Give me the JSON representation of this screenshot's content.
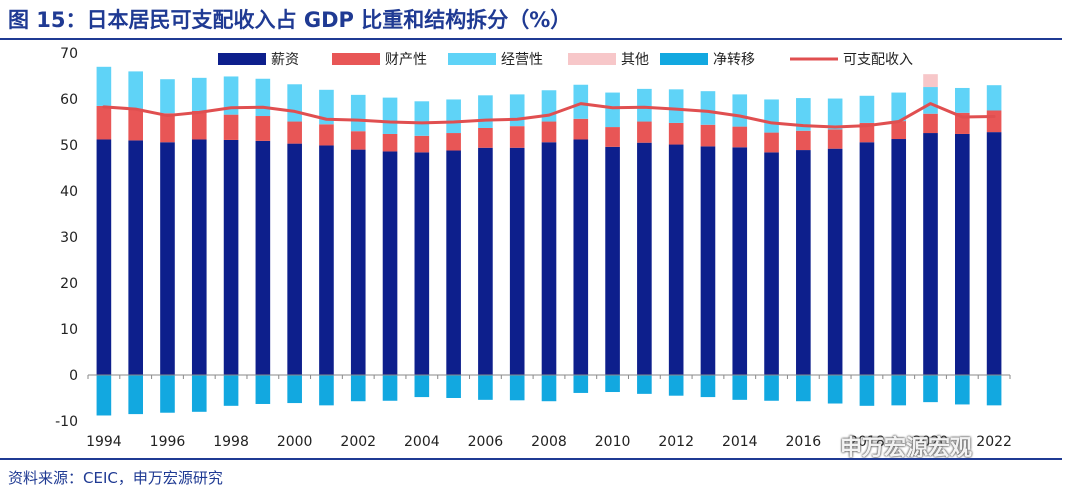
{
  "title": "图 15：日本居民可支配收入占 GDP 比重和结构拆分（%）",
  "source": "资料来源：CEIC，申万宏源研究",
  "watermark": "申万宏源宏观",
  "colors": {
    "wages": "#0d1f8c",
    "property": "#e85656",
    "business": "#5fd3f7",
    "other": "#f7c7c9",
    "transfer": "#12a8e0",
    "disposable": "#e04f50",
    "header": "#1f3a93"
  },
  "chart_data": {
    "type": "bar",
    "stacked": true,
    "x": [
      1994,
      1995,
      1996,
      1997,
      1998,
      1999,
      2000,
      2001,
      2002,
      2003,
      2004,
      2005,
      2006,
      2007,
      2008,
      2009,
      2010,
      2011,
      2012,
      2013,
      2014,
      2015,
      2016,
      2017,
      2018,
      2019,
      2020,
      2021,
      2022
    ],
    "x_tick_labels": [
      "1994",
      "1996",
      "1998",
      "2000",
      "2002",
      "2004",
      "2006",
      "2008",
      "2010",
      "2012",
      "2014",
      "2016",
      "2018",
      "2020",
      "2022"
    ],
    "ylim": [
      -10,
      70
    ],
    "y_ticks": [
      -10,
      0,
      10,
      20,
      30,
      40,
      50,
      60,
      70
    ],
    "grid": false,
    "legend": "top",
    "series": [
      {
        "name": "薪资",
        "type": "bar",
        "values": [
          51.2,
          51.0,
          50.6,
          51.2,
          51.1,
          50.9,
          50.3,
          49.9,
          49.0,
          48.6,
          48.4,
          48.8,
          49.4,
          49.4,
          50.6,
          51.2,
          49.6,
          50.5,
          50.1,
          49.7,
          49.5,
          48.4,
          48.9,
          49.2,
          50.6,
          51.3,
          52.6,
          52.4,
          52.8
        ]
      },
      {
        "name": "财产性",
        "type": "bar",
        "values": [
          7.3,
          6.9,
          6.3,
          6.2,
          5.5,
          5.4,
          4.8,
          4.6,
          4.0,
          3.8,
          3.6,
          3.8,
          4.3,
          4.7,
          4.5,
          4.5,
          4.3,
          4.6,
          4.7,
          4.7,
          4.5,
          4.3,
          4.2,
          4.2,
          4.2,
          3.9,
          4.2,
          4.6,
          4.7
        ]
      },
      {
        "name": "经营性",
        "type": "bar",
        "values": [
          8.5,
          8.1,
          7.4,
          7.2,
          8.3,
          8.1,
          8.1,
          7.5,
          7.9,
          7.9,
          7.5,
          7.3,
          7.1,
          6.9,
          6.8,
          7.4,
          7.5,
          7.1,
          7.3,
          7.3,
          7.0,
          7.2,
          7.1,
          6.7,
          5.9,
          6.2,
          5.8,
          5.4,
          5.5
        ]
      },
      {
        "name": "其他",
        "type": "bar",
        "values": [
          0,
          0,
          0,
          0,
          0,
          0,
          0,
          0,
          0,
          0,
          0,
          0,
          0,
          0,
          0,
          0,
          0,
          0,
          0,
          0,
          0,
          0,
          0,
          0,
          0,
          0,
          2.8,
          0,
          0
        ]
      },
      {
        "name": "净转移",
        "type": "bar",
        "values": [
          -8.8,
          -8.5,
          -8.2,
          -8.0,
          -6.7,
          -6.3,
          -6.1,
          -6.6,
          -5.7,
          -5.6,
          -4.8,
          -5.0,
          -5.4,
          -5.5,
          -5.7,
          -3.9,
          -3.7,
          -4.1,
          -4.5,
          -4.8,
          -5.4,
          -5.6,
          -5.7,
          -6.2,
          -6.7,
          -6.6,
          -5.9,
          -6.4,
          -6.6
        ]
      },
      {
        "name": "可支配收入",
        "type": "line",
        "values": [
          58.3,
          57.8,
          56.4,
          57.1,
          58.1,
          58.2,
          57.3,
          55.6,
          55.4,
          55.0,
          54.8,
          55.0,
          55.4,
          55.6,
          56.5,
          59.0,
          58.1,
          58.2,
          57.8,
          57.3,
          56.3,
          54.8,
          54.2,
          53.9,
          54.2,
          55.1,
          59.0,
          56.1,
          56.2
        ]
      }
    ]
  }
}
